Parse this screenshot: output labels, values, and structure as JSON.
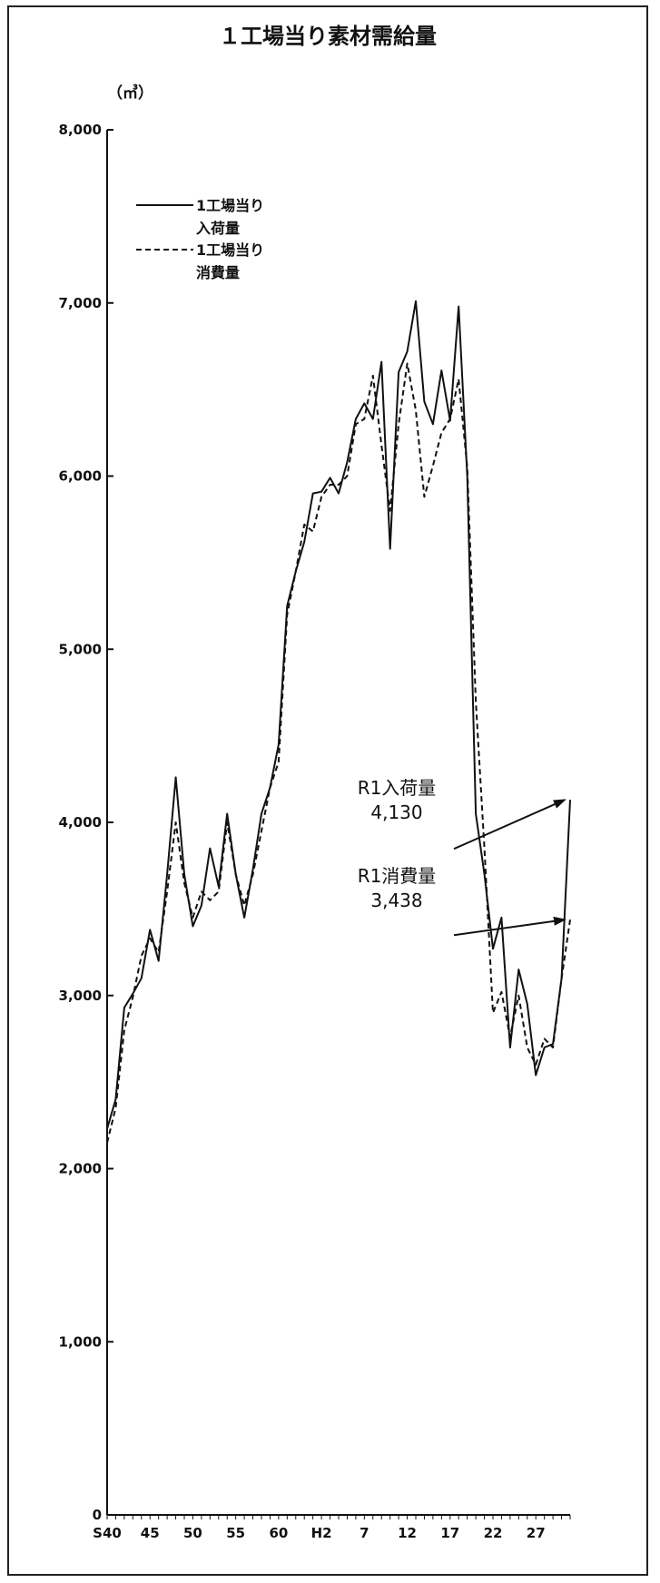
{
  "chart_data": {
    "type": "line",
    "title": "１工場当り素材需給量",
    "ylabel": "（㎥）",
    "ylim": [
      0,
      8000
    ],
    "y_ticks": [
      0,
      1000,
      2000,
      3000,
      4000,
      5000,
      6000,
      7000,
      8000
    ],
    "y_tick_labels": [
      "0",
      "1,000",
      "2,000",
      "3,000",
      "4,000",
      "5,000",
      "6,000",
      "7,000",
      "8,000"
    ],
    "x_tick_labels": [
      {
        "index": 0,
        "label": "S40"
      },
      {
        "index": 5,
        "label": "45"
      },
      {
        "index": 10,
        "label": "50"
      },
      {
        "index": 15,
        "label": "55"
      },
      {
        "index": 20,
        "label": "60"
      },
      {
        "index": 25,
        "label": "H2"
      },
      {
        "index": 30,
        "label": "7"
      },
      {
        "index": 35,
        "label": "12"
      },
      {
        "index": 40,
        "label": "17"
      },
      {
        "index": 45,
        "label": "22"
      },
      {
        "index": 50,
        "label": "27"
      }
    ],
    "legend_position": "top-left",
    "series": [
      {
        "name": "1工場当り入荷量",
        "legend_lines": [
          "1工場当り",
          "入荷量"
        ],
        "style": "solid",
        "values": [
          2230,
          2400,
          2930,
          3010,
          3100,
          3380,
          3200,
          3700,
          4260,
          3700,
          3400,
          3520,
          3850,
          3630,
          4050,
          3700,
          3450,
          3730,
          4050,
          4200,
          4450,
          5250,
          5450,
          5620,
          5900,
          5910,
          5990,
          5900,
          6080,
          6330,
          6420,
          6330,
          6660,
          5580,
          6600,
          6720,
          7010,
          6430,
          6300,
          6610,
          6320,
          6980,
          6000,
          4050,
          3700,
          3270,
          3450,
          2700,
          3150,
          2950,
          2540,
          2700,
          2720,
          3100,
          4130
        ]
      },
      {
        "name": "1工場当り消費量",
        "legend_lines": [
          "1工場当り",
          "消費量"
        ],
        "style": "dashed",
        "values": [
          2150,
          2350,
          2800,
          2990,
          3230,
          3330,
          3250,
          3600,
          4000,
          3650,
          3450,
          3600,
          3550,
          3600,
          4000,
          3700,
          3520,
          3700,
          3950,
          4200,
          4350,
          5200,
          5450,
          5720,
          5680,
          5880,
          5950,
          5950,
          6000,
          6300,
          6330,
          6580,
          6180,
          5800,
          6300,
          6650,
          6380,
          5880,
          6060,
          6250,
          6330,
          6560,
          6050,
          4700,
          3850,
          2900,
          3020,
          2760,
          3000,
          2700,
          2600,
          2750,
          2700,
          3100,
          3438
        ]
      }
    ],
    "annotations": [
      {
        "lines": [
          "R1入荷量",
          "4,130"
        ],
        "series": 0,
        "value": 4130
      },
      {
        "lines": [
          "R1消費量",
          "3,438"
        ],
        "series": 1,
        "value": 3438
      }
    ]
  }
}
